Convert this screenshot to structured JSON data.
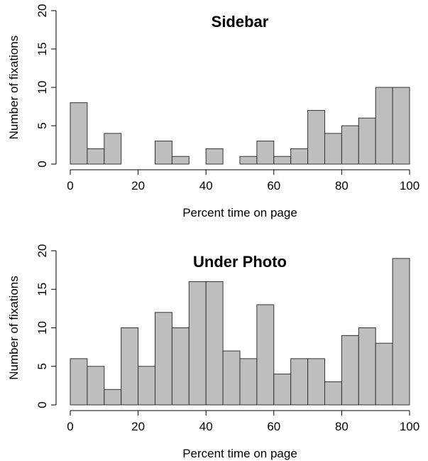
{
  "chart_data": [
    {
      "type": "bar",
      "title": "Sidebar",
      "xlabel": "Percent time on page",
      "ylabel": "Number of fixations",
      "bin_edges": [
        0,
        5,
        10,
        15,
        20,
        25,
        30,
        35,
        40,
        45,
        50,
        55,
        60,
        65,
        70,
        75,
        80,
        85,
        90,
        95,
        100
      ],
      "values": [
        8,
        2,
        4,
        0,
        0,
        3,
        1,
        0,
        2,
        0,
        1,
        3,
        1,
        2,
        7,
        4,
        5,
        6,
        10,
        10
      ],
      "xlim": [
        0,
        100
      ],
      "ylim": [
        0,
        20
      ],
      "xticks": [
        0,
        20,
        40,
        60,
        80,
        100
      ],
      "yticks": [
        0,
        5,
        10,
        15,
        20
      ],
      "bar_color": "#bebebe",
      "grid": false
    },
    {
      "type": "bar",
      "title": "Under Photo",
      "xlabel": "Percent time on page",
      "ylabel": "Number of fixations",
      "bin_edges": [
        0,
        5,
        10,
        15,
        20,
        25,
        30,
        35,
        40,
        45,
        50,
        55,
        60,
        65,
        70,
        75,
        80,
        85,
        90,
        95,
        100
      ],
      "values": [
        6,
        5,
        2,
        10,
        5,
        12,
        10,
        16,
        16,
        7,
        6,
        13,
        4,
        6,
        6,
        3,
        9,
        10,
        8,
        19
      ],
      "xlim": [
        0,
        100
      ],
      "ylim": [
        0,
        20
      ],
      "xticks": [
        0,
        20,
        40,
        60,
        80,
        100
      ],
      "yticks": [
        0,
        5,
        10,
        15,
        20
      ],
      "bar_color": "#bebebe",
      "grid": false
    }
  ]
}
